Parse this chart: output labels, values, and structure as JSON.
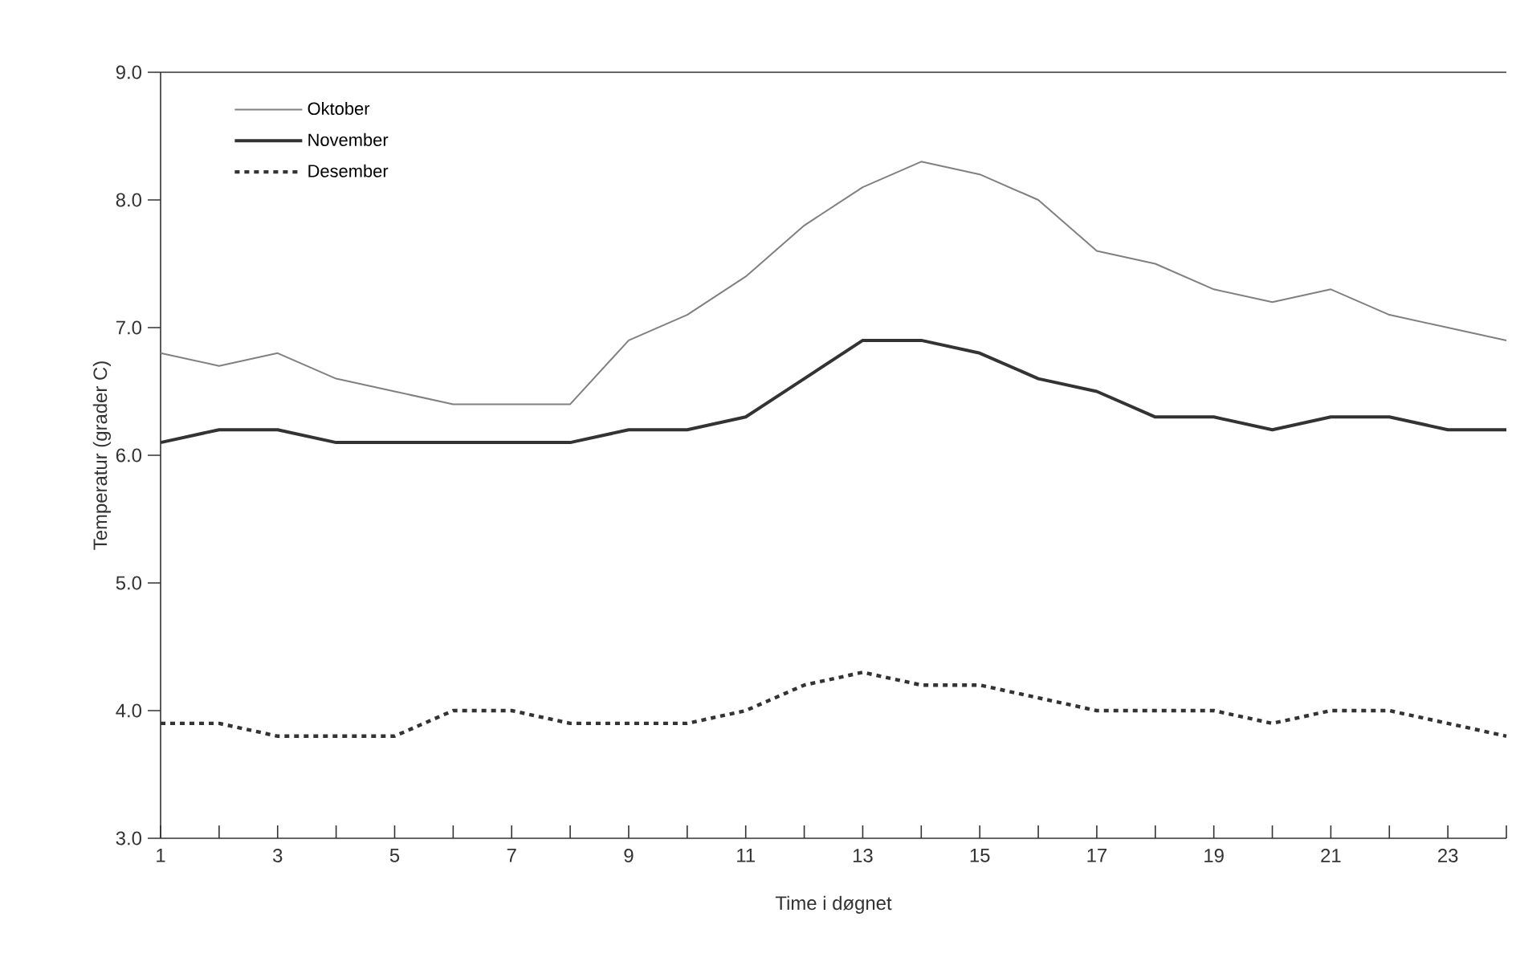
{
  "chart_data": {
    "type": "line",
    "xlabel": "Time i døgnet",
    "ylabel": "Temperatur (grader C)",
    "x": [
      1,
      2,
      3,
      4,
      5,
      6,
      7,
      8,
      9,
      10,
      11,
      12,
      13,
      14,
      15,
      16,
      17,
      18,
      19,
      20,
      21,
      22,
      23,
      24
    ],
    "xlim": [
      1,
      24
    ],
    "xticks": [
      1,
      {
        "value": 2,
        "label": null
      },
      3,
      {
        "value": 4,
        "label": null
      },
      5,
      {
        "value": 6,
        "label": null
      },
      7,
      {
        "value": 8,
        "label": null
      },
      9,
      {
        "value": 10,
        "label": null
      },
      11,
      {
        "value": 12,
        "label": null
      },
      13,
      {
        "value": 14,
        "label": null
      },
      15,
      {
        "value": 16,
        "label": null
      },
      17,
      {
        "value": 18,
        "label": null
      },
      19,
      {
        "value": 20,
        "label": null
      },
      21,
      {
        "value": 22,
        "label": null
      },
      23,
      {
        "value": 24,
        "label": null
      }
    ],
    "ylim": [
      3,
      9
    ],
    "yticks": [
      {
        "value": 3,
        "label": "3.0"
      },
      {
        "value": 4,
        "label": "4.0"
      },
      {
        "value": 5,
        "label": "5.0"
      },
      {
        "value": 6,
        "label": "6.0"
      },
      {
        "value": 7,
        "label": "7.0"
      },
      {
        "value": 8,
        "label": "8.0"
      },
      {
        "value": 9,
        "label": "9.0"
      }
    ],
    "legend": "top left",
    "grid": false,
    "marker": "none",
    "series": [
      {
        "name": "Oktober",
        "color": "#808080",
        "line_style": "solid",
        "values": [
          6.8,
          6.7,
          6.8,
          6.6,
          6.5,
          6.4,
          6.4,
          6.4,
          6.9,
          7.1,
          7.4,
          7.8,
          8.1,
          8.3,
          8.2,
          8.0,
          7.6,
          7.5,
          7.3,
          7.2,
          7.3,
          7.1,
          7.0,
          6.9
        ]
      },
      {
        "name": "November",
        "color": "#333333",
        "line_style": "solid",
        "values": [
          6.1,
          6.2,
          6.2,
          6.1,
          6.1,
          6.1,
          6.1,
          6.1,
          6.2,
          6.2,
          6.3,
          6.6,
          6.9,
          6.9,
          6.8,
          6.6,
          6.5,
          6.3,
          6.3,
          6.2,
          6.3,
          6.3,
          6.2,
          6.2
        ]
      },
      {
        "name": "Desember",
        "color": "#333333",
        "line_style": "dotted",
        "values": [
          3.9,
          3.9,
          3.8,
          3.8,
          3.8,
          4.0,
          4.0,
          3.9,
          3.9,
          3.9,
          4.0,
          4.2,
          4.3,
          4.2,
          4.2,
          4.1,
          4.0,
          4.0,
          4.0,
          3.9,
          4.0,
          4.0,
          3.9,
          3.8
        ]
      }
    ]
  }
}
